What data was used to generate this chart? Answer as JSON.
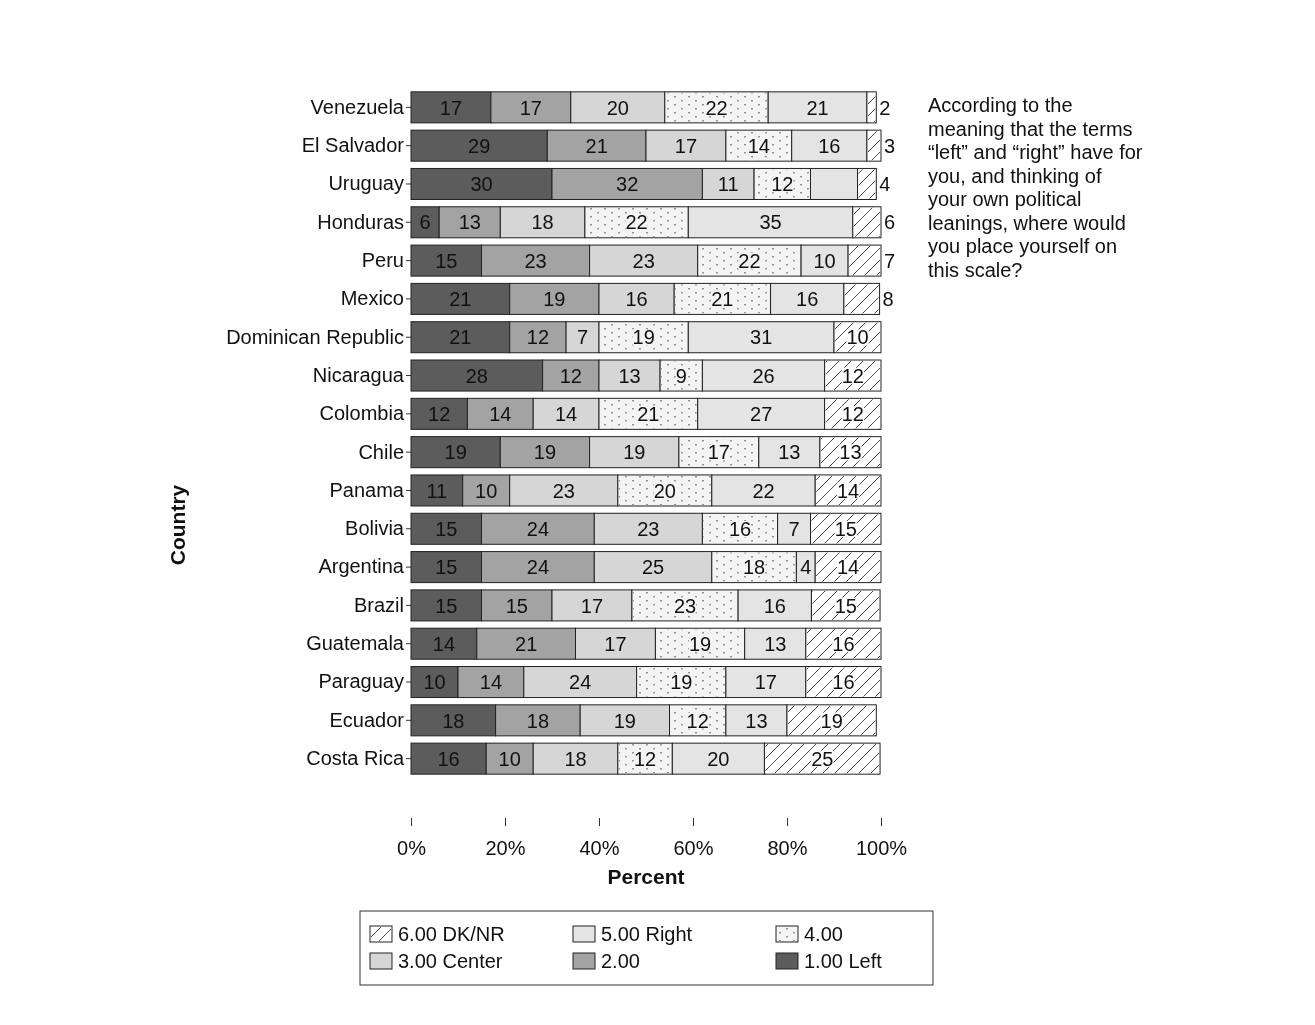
{
  "chart_data": {
    "type": "bar",
    "orientation": "horizontal",
    "stacked": true,
    "xlabel": "Percent",
    "ylabel": "Country",
    "categories": [
      "Venezuela",
      "El Salvador",
      "Uruguay",
      "Honduras",
      "Peru",
      "Mexico",
      "Dominican Republic",
      "Nicaragua",
      "Colombia",
      "Chile",
      "Panama",
      "Bolivia",
      "Argentina",
      "Brazil",
      "Guatemala",
      "Paraguay",
      "Ecuador",
      "Costa Rica"
    ],
    "xlim": [
      0,
      100
    ],
    "xticks": [
      {
        "value": 0,
        "label": "0%"
      },
      {
        "value": 20,
        "label": "20%"
      },
      {
        "value": 40,
        "label": "40%"
      },
      {
        "value": 60,
        "label": "60%"
      },
      {
        "value": 80,
        "label": "80%"
      },
      {
        "value": 100,
        "label": "100%"
      }
    ],
    "series": [
      {
        "name": "1.00 Left",
        "color": "#5c5c5c",
        "values": [
          17,
          29,
          30,
          6,
          15,
          21,
          21,
          28,
          12,
          19,
          11,
          15,
          15,
          15,
          14,
          10,
          18,
          16
        ]
      },
      {
        "name": "2.00",
        "color": "#a3a3a3",
        "values": [
          17,
          21,
          32,
          13,
          23,
          19,
          12,
          12,
          14,
          19,
          10,
          24,
          24,
          15,
          21,
          14,
          18,
          10
        ]
      },
      {
        "name": "3.00 Center",
        "color": "#d6d6d6",
        "values": [
          20,
          17,
          11,
          18,
          23,
          16,
          7,
          13,
          14,
          19,
          23,
          23,
          25,
          17,
          17,
          24,
          19,
          18
        ]
      },
      {
        "name": "4.00",
        "color": "#f4f4f4",
        "values": [
          22,
          14,
          12,
          22,
          22,
          20.5,
          19,
          9,
          21,
          17,
          20,
          16,
          18,
          22.6,
          19,
          19,
          12,
          11.6
        ],
        "value_labels": [
          "22",
          "14",
          "12",
          "22",
          "22",
          "21",
          "19",
          "9",
          "21",
          "17",
          "20",
          "16",
          "18",
          "23",
          "19",
          "19",
          "12",
          "12"
        ]
      },
      {
        "name": "5.00 Right",
        "color": "#e4e4e4",
        "values": [
          21,
          16,
          10,
          35,
          10,
          15.6,
          31,
          26,
          27,
          13,
          22,
          7,
          4,
          15.6,
          13,
          17,
          13,
          19.6
        ],
        "value_labels": [
          "21",
          "16",
          null,
          "35",
          "10",
          "16",
          "31",
          "26",
          "27",
          "13",
          "22",
          "7",
          "4",
          "16",
          "13",
          "17",
          "13",
          "20"
        ]
      },
      {
        "name": "6.00 DK/NR",
        "color": "#ffffff",
        "values": [
          2,
          3,
          4,
          6,
          7,
          7.6,
          10,
          12,
          12,
          13,
          14,
          15,
          14,
          14.6,
          16,
          16,
          19,
          24.6
        ],
        "value_labels": [
          "2",
          "3",
          "4",
          "6",
          "7",
          "8",
          "10",
          "12",
          "12",
          "13",
          "14",
          "15",
          "14",
          "15",
          "16",
          "16",
          "19",
          "25"
        ]
      }
    ],
    "data_labels": true,
    "legend": "bottom",
    "grid": false,
    "annotations": [
      "According to the meaning that the terms “left” and “right” have for you, and thinking of your own political leanings, where would you place yourself on this scale?"
    ]
  }
}
